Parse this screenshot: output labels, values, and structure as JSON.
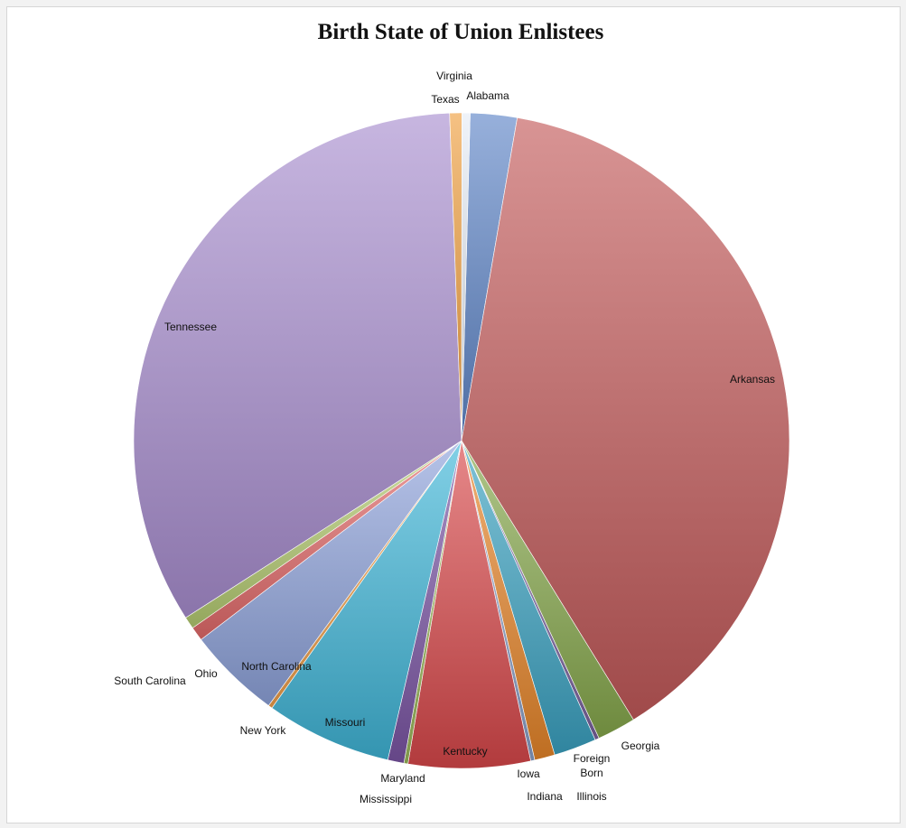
{
  "chart_data": {
    "type": "pie",
    "title": "Birth State of Union Enlistees",
    "legend": "none",
    "slices": [
      {
        "label": "Alabama",
        "value": 2.3,
        "color": "#5f86c8",
        "label_lines": [
          "Alabama"
        ]
      },
      {
        "label": "Arkansas",
        "value": 38.5,
        "color": "#c35a5a",
        "label_lines": [
          "Arkansas"
        ]
      },
      {
        "label": "Georgia",
        "value": 1.9,
        "color": "#86a84b",
        "label_lines": [
          "Georgia"
        ]
      },
      {
        "label": "Foreign Born",
        "value": 0.2,
        "color": "#7a63a0",
        "label_lines": [
          "Foreign",
          "Born"
        ]
      },
      {
        "label": "Illinois",
        "value": 2.1,
        "color": "#3aa2c2",
        "label_lines": [
          "Illinois"
        ]
      },
      {
        "label": "Indiana",
        "value": 1.0,
        "color": "#e8862a",
        "label_lines": [
          "Indiana"
        ]
      },
      {
        "label": "Iowa",
        "value": 0.2,
        "color": "#8aa0c8",
        "label_lines": [
          "Iowa"
        ]
      },
      {
        "label": "Kentucky",
        "value": 6.0,
        "color": "#d9484a",
        "label_lines": [
          "Kentucky"
        ]
      },
      {
        "label": "Maryland",
        "value": 0.2,
        "color": "#9bb85a",
        "label_lines": [
          "Maryland"
        ]
      },
      {
        "label": "Mississippi",
        "value": 0.8,
        "color": "#7b55a5",
        "label_lines": [
          "Mississippi"
        ]
      },
      {
        "label": "Missouri",
        "value": 6.2,
        "color": "#3fb6d8",
        "label_lines": [
          "Missouri"
        ]
      },
      {
        "label": "New York",
        "value": 0.2,
        "color": "#f0a04a",
        "label_lines": [
          "New York"
        ]
      },
      {
        "label": "North Carolina",
        "value": 4.6,
        "color": "#8fa3dc",
        "label_lines": [
          "North Carolina"
        ]
      },
      {
        "label": "Ohio",
        "value": 0.7,
        "color": "#e36a6a",
        "label_lines": [
          "Ohio"
        ]
      },
      {
        "label": "South Carolina",
        "value": 0.6,
        "color": "#b5cc72",
        "label_lines": [
          "South Carolina"
        ]
      },
      {
        "label": "Tennessee",
        "value": 33.5,
        "color": "#a98fd0",
        "label_lines": [
          "Tennessee"
        ]
      },
      {
        "label": "Texas",
        "value": 0.6,
        "color": "#f0a040",
        "label_lines": [
          "Texas"
        ]
      },
      {
        "label": "Virginia",
        "value": 0.4,
        "color": "#e6ecf5",
        "label_lines": [
          "Virginia"
        ]
      }
    ]
  }
}
